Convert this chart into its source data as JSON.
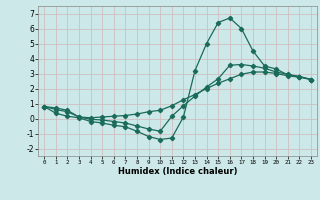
{
  "xlabel": "Humidex (Indice chaleur)",
  "bg_color": "#cce8e8",
  "grid_color": "#b0d0d0",
  "line_color": "#1a6b5a",
  "ylim": [
    -2.5,
    7.5
  ],
  "xlim": [
    -0.5,
    23.5
  ],
  "yticks": [
    -2,
    -1,
    0,
    1,
    2,
    3,
    4,
    5,
    6,
    7
  ],
  "xticks": [
    0,
    1,
    2,
    3,
    4,
    5,
    6,
    7,
    8,
    9,
    10,
    11,
    12,
    13,
    14,
    15,
    16,
    17,
    18,
    19,
    20,
    21,
    22,
    23
  ],
  "line1_x": [
    0,
    1,
    2,
    3,
    4,
    5,
    6,
    7,
    8,
    9,
    10,
    11,
    12,
    13,
    14,
    15,
    16,
    17,
    18,
    19,
    20,
    21,
    22,
    23
  ],
  "line1_y": [
    0.8,
    0.35,
    0.15,
    0.05,
    -0.2,
    -0.3,
    -0.45,
    -0.55,
    -0.85,
    -1.2,
    -1.4,
    -1.3,
    0.1,
    3.2,
    5.0,
    6.4,
    6.7,
    6.0,
    4.5,
    3.5,
    3.3,
    2.9,
    2.8,
    2.6
  ],
  "line2_x": [
    0,
    1,
    2,
    3,
    4,
    5,
    6,
    7,
    8,
    9,
    10,
    11,
    12,
    13,
    14,
    15,
    16,
    17,
    18,
    19,
    20,
    21,
    22,
    23
  ],
  "line2_y": [
    0.8,
    0.6,
    0.45,
    0.1,
    -0.05,
    -0.1,
    -0.2,
    -0.3,
    -0.5,
    -0.7,
    -0.85,
    0.15,
    0.85,
    1.5,
    2.1,
    2.65,
    3.55,
    3.6,
    3.5,
    3.35,
    3.1,
    2.95,
    2.8,
    2.6
  ],
  "line3_x": [
    0,
    1,
    2,
    3,
    4,
    5,
    6,
    7,
    8,
    9,
    10,
    11,
    12,
    13,
    14,
    15,
    16,
    17,
    18,
    19,
    20,
    21,
    22,
    23
  ],
  "line3_y": [
    0.8,
    0.7,
    0.55,
    0.1,
    0.05,
    0.1,
    0.15,
    0.2,
    0.3,
    0.45,
    0.55,
    0.85,
    1.25,
    1.6,
    2.0,
    2.35,
    2.65,
    2.95,
    3.1,
    3.1,
    3.0,
    2.85,
    2.75,
    2.6
  ]
}
